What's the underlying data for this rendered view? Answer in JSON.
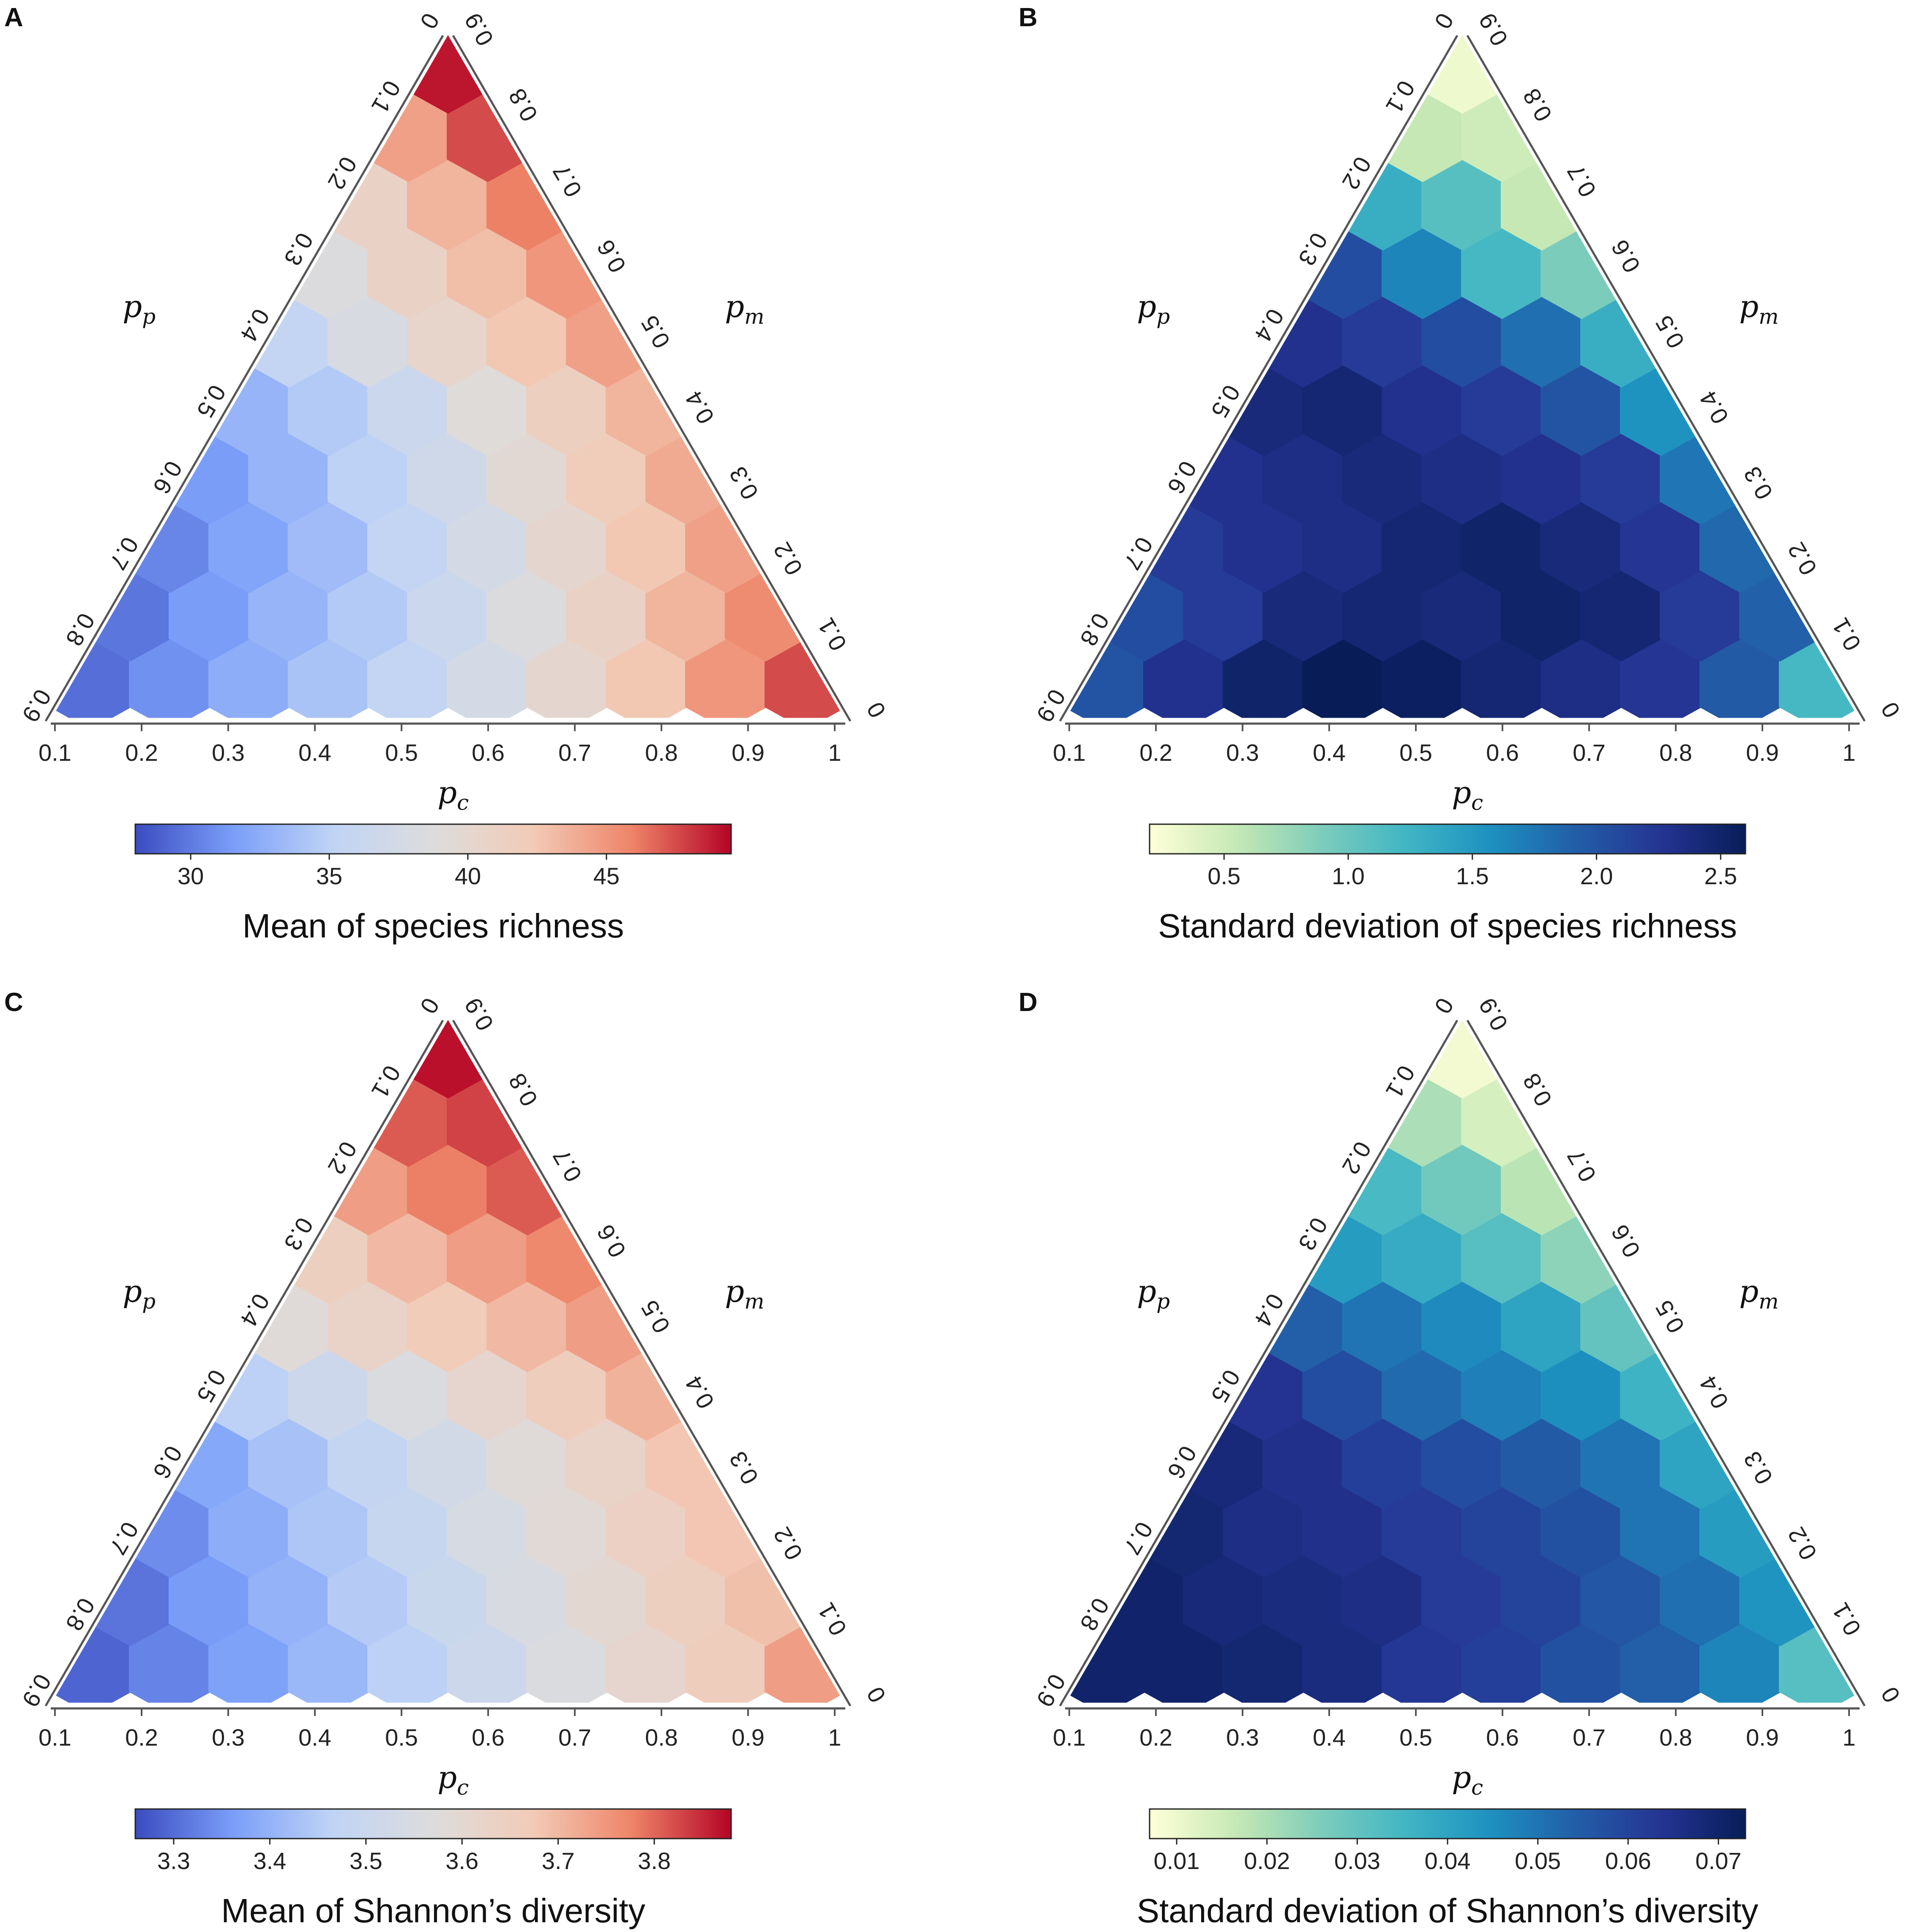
{
  "figure": {
    "axis_labels": {
      "left": "p",
      "left_sub": "p",
      "right": "p",
      "right_sub": "m",
      "bottom": "p",
      "bottom_sub": "c"
    }
  },
  "colormaps": {
    "coolwarm": [
      "#3b4cc0",
      "#7b9ff9",
      "#c0d4f5",
      "#dddcdc",
      "#f2cbb7",
      "#ee8468",
      "#b40426"
    ],
    "ylgnbu": [
      "#ffffd9",
      "#c7e9b4",
      "#7fcdbb",
      "#41b6c4",
      "#1d91c0",
      "#225ea8",
      "#253494",
      "#081d58"
    ]
  },
  "chart_data": [
    {
      "type": "heatmap",
      "subtype": "ternary-hexbin",
      "panel_letter": "A",
      "title": "Mean of species richness",
      "colormap": "coolwarm",
      "vmin": 28,
      "vmax": 49.5,
      "colorbar_ticks": [
        "30",
        "35",
        "40",
        "45"
      ],
      "colorbar_tick_values": [
        30,
        35,
        40,
        45
      ],
      "bottom_axis_ticks": [
        "0.1",
        "0.2",
        "0.3",
        "0.4",
        "0.5",
        "0.6",
        "0.7",
        "0.8",
        "0.9",
        "1"
      ],
      "left_axis_ticks": [
        "0.9",
        "0.8",
        "0.7",
        "0.6",
        "0.5",
        "0.4",
        "0.3",
        "0.2",
        "0.1",
        "0"
      ],
      "right_axis_ticks": [
        "0",
        "0.1",
        "0.2",
        "0.3",
        "0.4",
        "0.5",
        "0.6",
        "0.7",
        "0.8",
        "0.9"
      ],
      "row_labels": [
        "pm = 0.0",
        "pm = 0.1",
        "pm = 0.2",
        "pm = 0.3",
        "pm = 0.4",
        "pm = 0.5",
        "pm = 0.6",
        "pm = 0.7",
        "pm = 0.8",
        "pm = 0.9"
      ],
      "values": [
        [
          29.5,
          31.0,
          32.5,
          34.0,
          35.5,
          37.5,
          40.0,
          42.5,
          45.0,
          47.5
        ],
        [
          29.8,
          31.5,
          33.0,
          34.5,
          36.5,
          38.5,
          41.0,
          43.5,
          45.5
        ],
        [
          30.5,
          32.0,
          33.5,
          35.5,
          37.5,
          40.0,
          42.5,
          44.5
        ],
        [
          31.5,
          33.0,
          35.0,
          37.0,
          39.5,
          42.0,
          44.0
        ],
        [
          33.0,
          34.5,
          36.5,
          39.0,
          41.5,
          43.5
        ],
        [
          35.5,
          38.0,
          40.5,
          42.5,
          44.5
        ],
        [
          38.5,
          41.0,
          43.0,
          45.0
        ],
        [
          41.0,
          43.5,
          46.0
        ],
        [
          44.5,
          47.5
        ],
        [
          49.0
        ]
      ]
    },
    {
      "type": "heatmap",
      "subtype": "ternary-hexbin",
      "panel_letter": "B",
      "title": "Standard deviation of species richness",
      "colormap": "ylgnbu",
      "vmin": 0.2,
      "vmax": 2.6,
      "colorbar_ticks": [
        "0.5",
        "1.0",
        "1.5",
        "2.0",
        "2.5"
      ],
      "colorbar_tick_values": [
        0.5,
        1.0,
        1.5,
        2.0,
        2.5
      ],
      "bottom_axis_ticks": [
        "0.1",
        "0.2",
        "0.3",
        "0.4",
        "0.5",
        "0.6",
        "0.7",
        "0.8",
        "0.9",
        "1"
      ],
      "left_axis_ticks": [
        "0.9",
        "0.8",
        "0.7",
        "0.6",
        "0.5",
        "0.4",
        "0.3",
        "0.2",
        "0.1",
        "0"
      ],
      "right_axis_ticks": [
        "0",
        "0.1",
        "0.2",
        "0.3",
        "0.4",
        "0.5",
        "0.6",
        "0.7",
        "0.8",
        "0.9"
      ],
      "row_labels": [
        "pm = 0.0",
        "pm = 0.1",
        "pm = 0.2",
        "pm = 0.3",
        "pm = 0.4",
        "pm = 0.5",
        "pm = 0.6",
        "pm = 0.7",
        "pm = 0.8",
        "pm = 0.9"
      ],
      "values": [
        [
          2.0,
          2.3,
          2.5,
          2.6,
          2.55,
          2.45,
          2.35,
          2.25,
          1.95,
          1.2
        ],
        [
          2.05,
          2.2,
          2.4,
          2.45,
          2.4,
          2.5,
          2.45,
          2.2,
          1.9
        ],
        [
          2.2,
          2.3,
          2.35,
          2.45,
          2.5,
          2.4,
          2.25,
          1.85
        ],
        [
          2.3,
          2.35,
          2.4,
          2.35,
          2.3,
          2.2,
          1.75
        ],
        [
          2.4,
          2.45,
          2.3,
          2.2,
          2.0,
          1.55
        ],
        [
          2.3,
          2.2,
          2.05,
          1.8,
          1.3
        ],
        [
          2.05,
          1.65,
          1.2,
          0.9
        ],
        [
          1.3,
          1.1,
          0.55
        ],
        [
          0.55,
          0.5
        ],
        [
          0.3
        ]
      ]
    },
    {
      "type": "heatmap",
      "subtype": "ternary-hexbin",
      "panel_letter": "C",
      "title": "Mean of Shannon’s diversity",
      "colormap": "coolwarm",
      "vmin": 3.26,
      "vmax": 3.88,
      "colorbar_ticks": [
        "3.3",
        "3.4",
        "3.5",
        "3.6",
        "3.7",
        "3.8"
      ],
      "colorbar_tick_values": [
        3.3,
        3.4,
        3.5,
        3.6,
        3.7,
        3.8
      ],
      "bottom_axis_ticks": [
        "0.1",
        "0.2",
        "0.3",
        "0.4",
        "0.5",
        "0.6",
        "0.7",
        "0.8",
        "0.9",
        "1"
      ],
      "left_axis_ticks": [
        "0.9",
        "0.8",
        "0.7",
        "0.6",
        "0.5",
        "0.4",
        "0.3",
        "0.2",
        "0.1",
        "0"
      ],
      "right_axis_ticks": [
        "0",
        "0.1",
        "0.2",
        "0.3",
        "0.4",
        "0.5",
        "0.6",
        "0.7",
        "0.8",
        "0.9"
      ],
      "row_labels": [
        "pm = 0.0",
        "pm = 0.1",
        "pm = 0.2",
        "pm = 0.3",
        "pm = 0.4",
        "pm = 0.5",
        "pm = 0.6",
        "pm = 0.7",
        "pm = 0.8",
        "pm = 0.9"
      ],
      "values": [
        [
          3.29,
          3.33,
          3.37,
          3.41,
          3.46,
          3.51,
          3.56,
          3.61,
          3.66,
          3.74
        ],
        [
          3.31,
          3.36,
          3.4,
          3.45,
          3.5,
          3.55,
          3.6,
          3.65,
          3.69
        ],
        [
          3.34,
          3.39,
          3.44,
          3.49,
          3.54,
          3.59,
          3.64,
          3.68
        ],
        [
          3.38,
          3.43,
          3.48,
          3.53,
          3.58,
          3.63,
          3.68
        ],
        [
          3.46,
          3.51,
          3.56,
          3.61,
          3.66,
          3.71
        ],
        [
          3.58,
          3.63,
          3.67,
          3.7,
          3.74
        ],
        [
          3.65,
          3.7,
          3.74,
          3.77
        ],
        [
          3.74,
          3.78,
          3.81
        ],
        [
          3.81,
          3.83
        ],
        [
          3.87
        ]
      ]
    },
    {
      "type": "heatmap",
      "subtype": "ternary-hexbin",
      "panel_letter": "D",
      "title": "Standard deviation of Shannon’s diversity",
      "colormap": "ylgnbu",
      "vmin": 0.007,
      "vmax": 0.073,
      "colorbar_ticks": [
        "0.01",
        "0.02",
        "0.03",
        "0.04",
        "0.05",
        "0.06",
        "0.07"
      ],
      "colorbar_tick_values": [
        0.01,
        0.02,
        0.03,
        0.04,
        0.05,
        0.06,
        0.07
      ],
      "bottom_axis_ticks": [
        "0.1",
        "0.2",
        "0.3",
        "0.4",
        "0.5",
        "0.6",
        "0.7",
        "0.8",
        "0.9",
        "1"
      ],
      "left_axis_ticks": [
        "0.9",
        "0.8",
        "0.7",
        "0.6",
        "0.5",
        "0.4",
        "0.3",
        "0.2",
        "0.1",
        "0"
      ],
      "right_axis_ticks": [
        "0",
        "0.1",
        "0.2",
        "0.3",
        "0.4",
        "0.5",
        "0.6",
        "0.7",
        "0.8",
        "0.9"
      ],
      "row_labels": [
        "pm = 0.0",
        "pm = 0.1",
        "pm = 0.2",
        "pm = 0.3",
        "pm = 0.4",
        "pm = 0.5",
        "pm = 0.6",
        "pm = 0.7",
        "pm = 0.8",
        "pm = 0.9"
      ],
      "values": [
        [
          0.07,
          0.07,
          0.069,
          0.067,
          0.063,
          0.061,
          0.057,
          0.054,
          0.047,
          0.032
        ],
        [
          0.07,
          0.068,
          0.067,
          0.066,
          0.062,
          0.06,
          0.056,
          0.051,
          0.044
        ],
        [
          0.069,
          0.066,
          0.065,
          0.062,
          0.06,
          0.057,
          0.05,
          0.042
        ],
        [
          0.068,
          0.065,
          0.061,
          0.058,
          0.055,
          0.05,
          0.04
        ],
        [
          0.064,
          0.058,
          0.052,
          0.048,
          0.045,
          0.036
        ],
        [
          0.054,
          0.05,
          0.046,
          0.04,
          0.03
        ],
        [
          0.042,
          0.038,
          0.032,
          0.024
        ],
        [
          0.034,
          0.028,
          0.018
        ],
        [
          0.02,
          0.014
        ],
        [
          0.009
        ]
      ]
    }
  ]
}
